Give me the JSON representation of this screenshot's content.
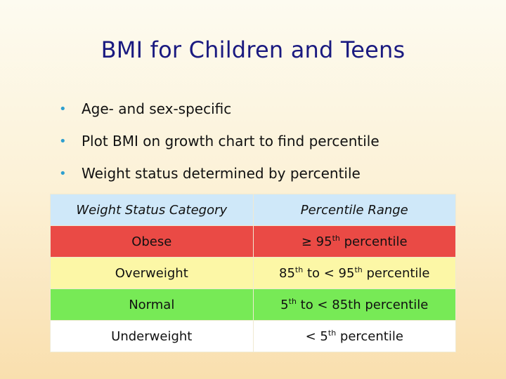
{
  "title": "BMI for Children and Teens",
  "bullets": [
    "Age- and sex-specific",
    "Plot BMI on growth chart to find percentile",
    "Weight status determined by percentile"
  ],
  "table": {
    "headers": [
      "Weight Status Category",
      "Percentile Range"
    ],
    "rows": [
      {
        "category": "Obese",
        "range": [
          "≥ 95",
          "th",
          " percentile"
        ],
        "color": "#ea4a45"
      },
      {
        "category": "Overweight",
        "range": [
          "85",
          "th",
          " to < 95",
          "th",
          " percentile"
        ],
        "color": "#fcf7a6"
      },
      {
        "category": "Normal",
        "range": [
          "5",
          "th",
          " to <  85th percentile"
        ],
        "color": "#77ea56"
      },
      {
        "category": "Underweight",
        "range": [
          "< 5",
          "th",
          " percentile"
        ],
        "color": "#ffffff"
      }
    ]
  },
  "colors": {
    "title": "#1a1a80",
    "bullet": "#2e9fcf",
    "header_bg": "#cfe8f9"
  }
}
